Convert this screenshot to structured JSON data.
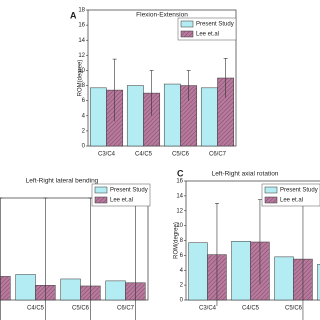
{
  "chart_data": [
    {
      "type": "bar",
      "label": "A",
      "title": "Flexion-Extension",
      "y_label": "ROM(degree)",
      "categories": [
        "C3/C4",
        "C4/C5",
        "C5/C6",
        "C6/C7"
      ],
      "series": [
        {
          "name": "Present Study",
          "color": "#b3ecf3",
          "values": [
            7.7,
            8.0,
            8.2,
            7.7
          ],
          "errors": [
            null,
            null,
            null,
            null
          ]
        },
        {
          "name": "Lee et.al",
          "color": "#b57a9c",
          "hatch": true,
          "values": [
            7.4,
            7.0,
            8.0,
            9.0
          ],
          "errors": [
            4.1,
            3.0,
            2.0,
            2.6
          ]
        }
      ],
      "ylim": [
        0,
        18
      ],
      "yticks": [
        0,
        2,
        4,
        6,
        8,
        10,
        12,
        14,
        16,
        18
      ]
    },
    {
      "type": "bar",
      "title": "Left-Right lateral bending",
      "categories": [
        "C3/C4",
        "C4/C5",
        "C5/C6",
        "C6/C7"
      ],
      "series": [
        {
          "name": "Present Study",
          "color": "#b3ecf3",
          "values": [
            4.5,
            4.0,
            3.3,
            3.0
          ],
          "errors": [
            null,
            null,
            null,
            null
          ]
        },
        {
          "name": "Lee et.al",
          "color": "#b57a9c",
          "hatch": true,
          "values": [
            3.7,
            2.3,
            2.2,
            2.7
          ],
          "errors": [
            12.3,
            13.7,
            13.8,
            13.3
          ]
        }
      ],
      "ylim": [
        0,
        16
      ]
    },
    {
      "type": "bar",
      "label": "C",
      "title": "Left-Right axial rotation",
      "y_label": "ROM(degree)",
      "categories": [
        "C3/C4",
        "C4/C5",
        "C5/C6",
        "C6/C7"
      ],
      "series": [
        {
          "name": "Present Study",
          "color": "#b3ecf3",
          "values": [
            7.7,
            7.9,
            5.8,
            4.8
          ],
          "errors": [
            null,
            null,
            null,
            null
          ]
        },
        {
          "name": "Lee et.al",
          "color": "#b57a9c",
          "hatch": true,
          "values": [
            6.1,
            7.8,
            5.5,
            null
          ],
          "errors": [
            6.9,
            5.7,
            8.3,
            null
          ]
        }
      ],
      "ylim": [
        0,
        16
      ],
      "yticks": [
        0,
        2,
        4,
        6,
        8,
        10,
        12,
        14,
        16
      ]
    }
  ]
}
